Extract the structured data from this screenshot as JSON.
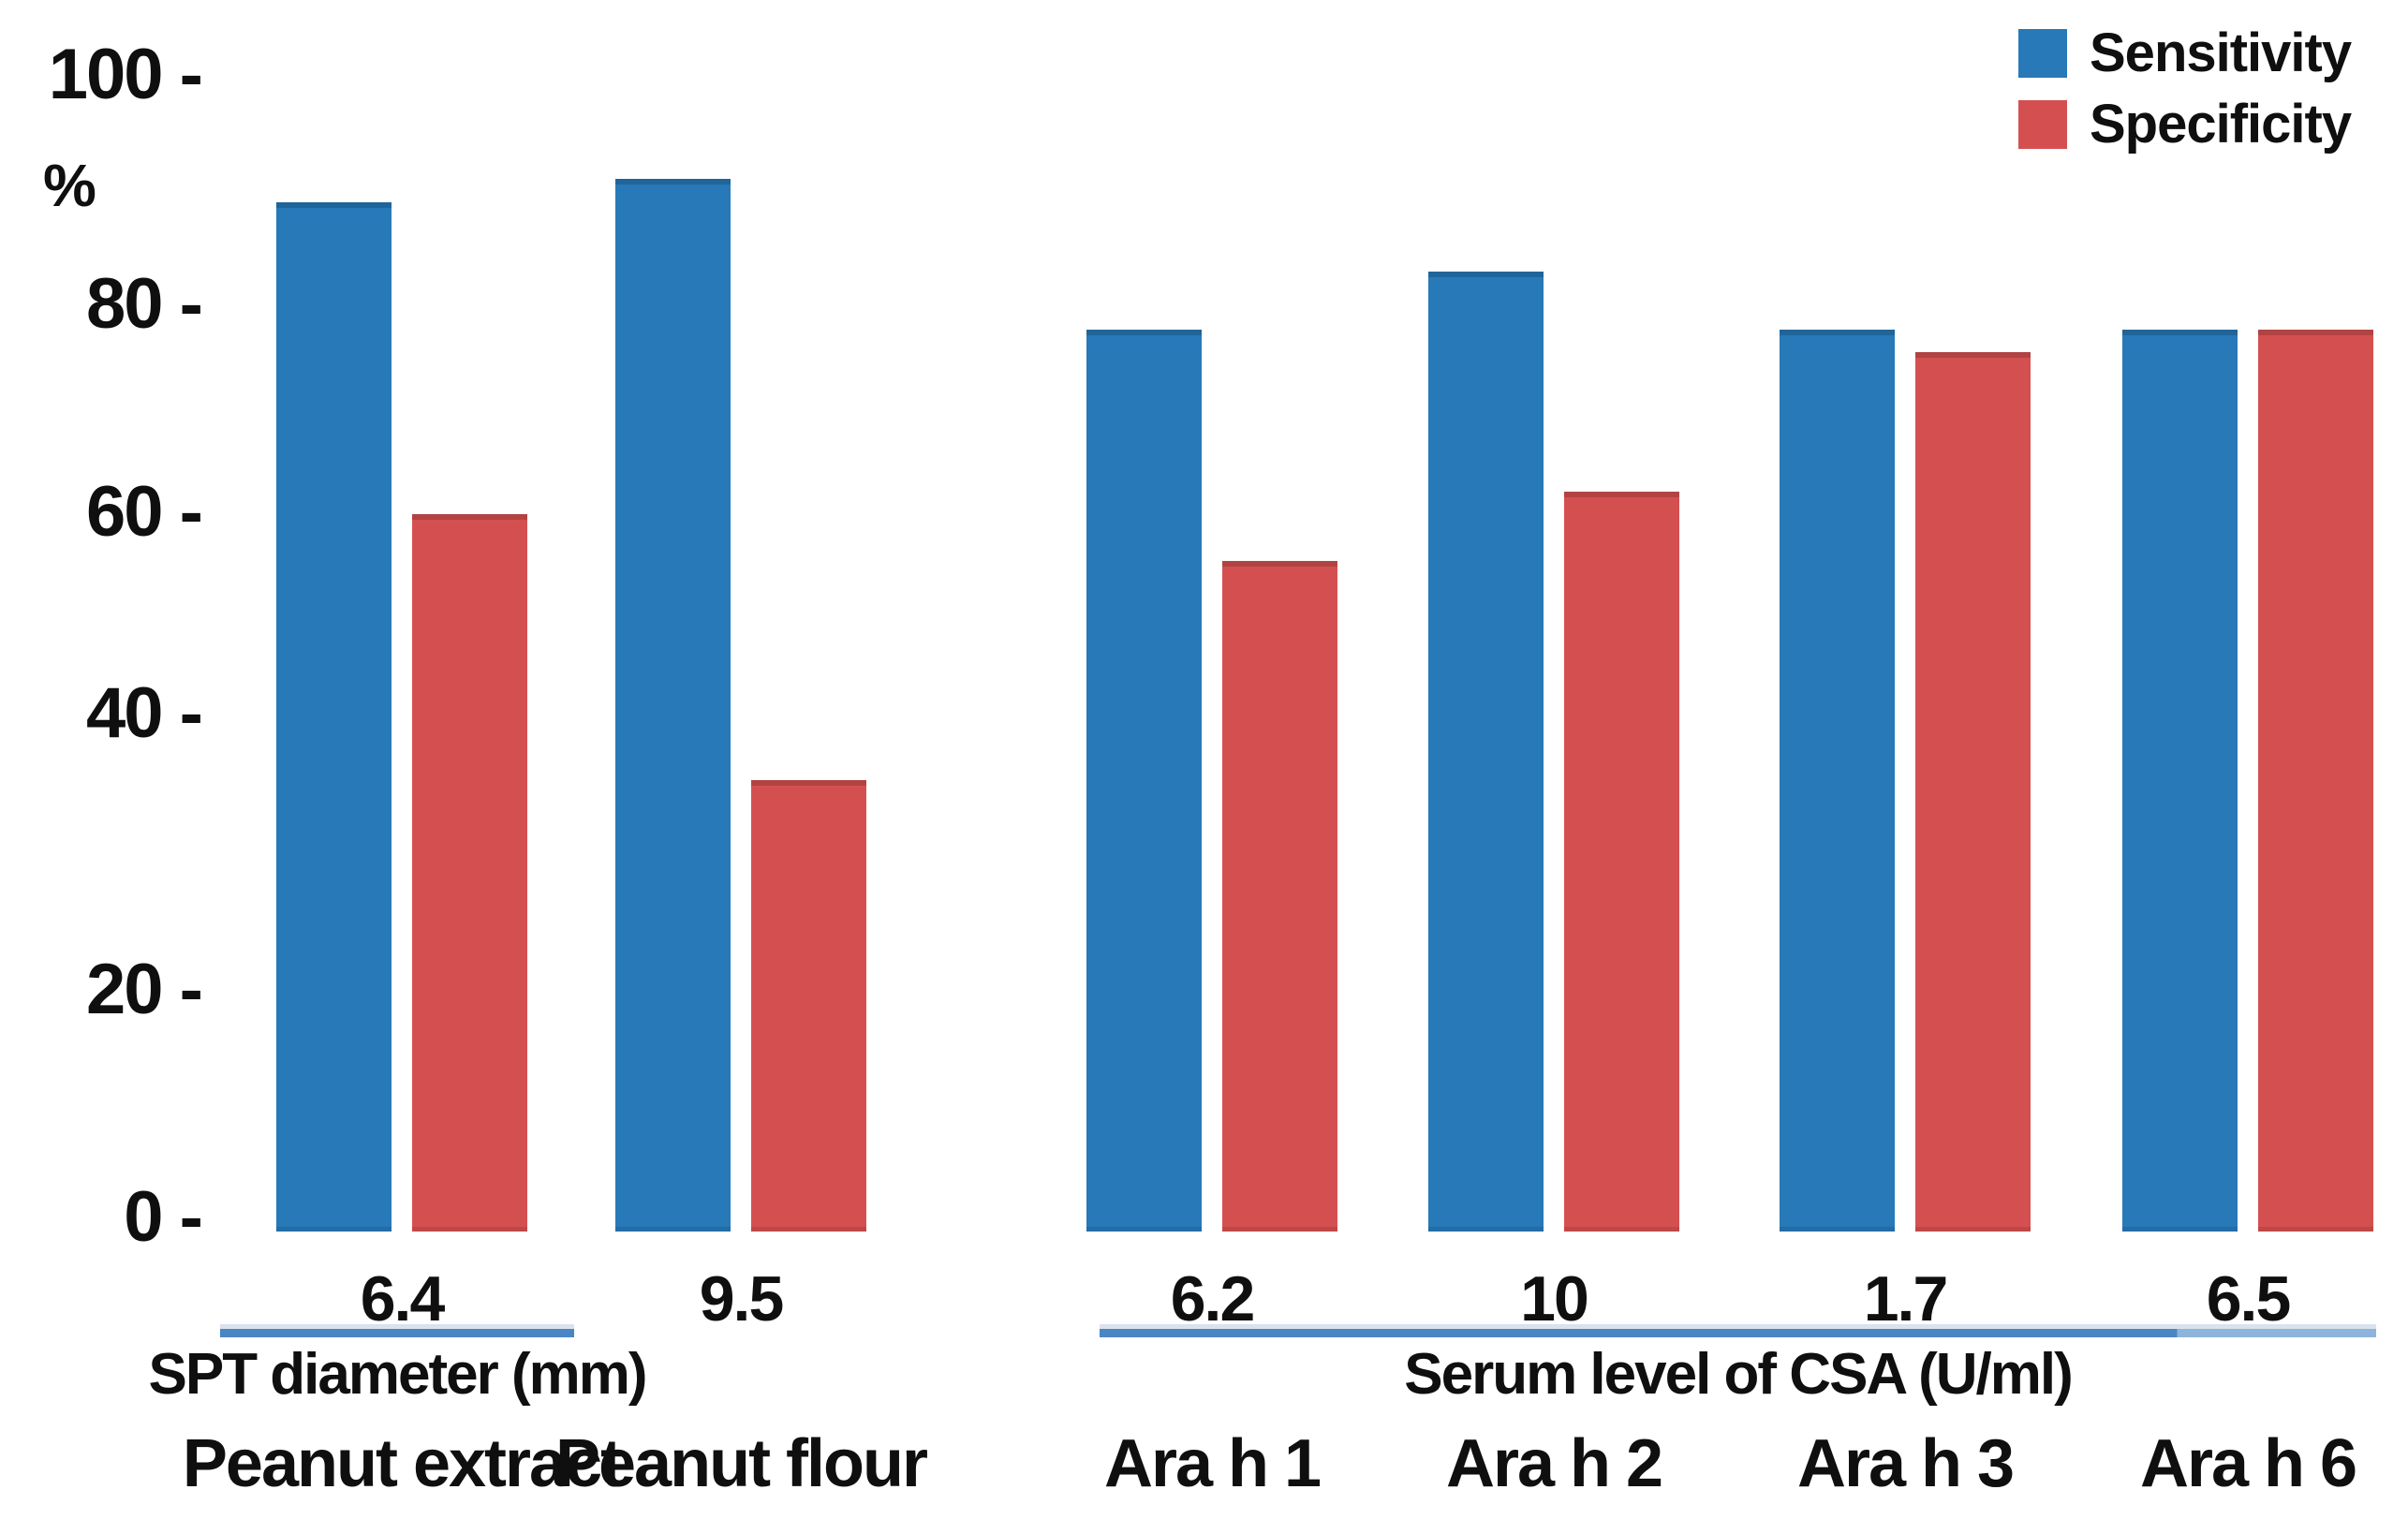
{
  "chart_data": {
    "type": "bar",
    "title": "",
    "xlabel": "",
    "ylabel": "%",
    "ylim": [
      0,
      100
    ],
    "grid": false,
    "legend_position": "top-right",
    "yticks": [
      {
        "value": 100,
        "label": "100 -"
      },
      {
        "value": 80,
        "label": "80 -"
      },
      {
        "value": 60,
        "label": "60 -"
      },
      {
        "value": 40,
        "label": "40 -"
      },
      {
        "value": 20,
        "label": "20 -"
      },
      {
        "value": 0,
        "label": "0 -"
      }
    ],
    "series": [
      {
        "name": "Sensitivity",
        "color": "#2779B8",
        "values": [
          89,
          91,
          78,
          83,
          78,
          78
        ]
      },
      {
        "name": "Specificity",
        "color": "#D45050",
        "values": [
          62,
          39,
          58,
          64,
          76,
          78
        ]
      }
    ],
    "categories": [
      "Peanut extract",
      "Peanut flour",
      "Ara h 1",
      "Ara h 2",
      "Ara h 3",
      "Ara h 6"
    ],
    "cutoff_labels": [
      "6.4",
      "9.5",
      "6.2",
      "10",
      "1.7",
      "6.5"
    ],
    "sections": [
      {
        "label": "SPT diameter (mm)",
        "categories": [
          "Peanut extract",
          "Peanut flour"
        ],
        "cutoffs": [
          "6.4",
          "9.5"
        ]
      },
      {
        "label": "Serum level of CSA (U/ml)",
        "categories": [
          "Ara h 1",
          "Ara h 2",
          "Ara h 3",
          "Ara h 6"
        ],
        "cutoffs": [
          "6.2",
          "10",
          "1.7",
          "6.5"
        ]
      }
    ]
  }
}
